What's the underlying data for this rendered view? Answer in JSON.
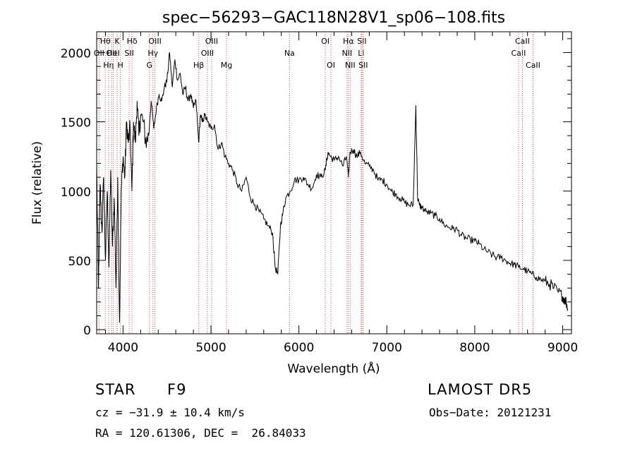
{
  "chart_data": {
    "type": "line",
    "title": "spec−56293−GAC118N28V1_sp06−108.fits",
    "xlabel": "Wavelength (Å)",
    "ylabel": "Flux (relative)",
    "xlim": [
      3700,
      9100
    ],
    "ylim": [
      -30,
      2150
    ],
    "x_ticks": [
      4000,
      5000,
      6000,
      7000,
      8000,
      9000
    ],
    "y_ticks": [
      0,
      500,
      1000,
      1500,
      2000
    ],
    "grid": false,
    "legend": "none",
    "series": [
      {
        "x": [
          3700,
          3720,
          3740,
          3760,
          3780,
          3800,
          3820,
          3840,
          3860,
          3880,
          3900,
          3920,
          3940,
          3960,
          3980,
          4000,
          4020,
          4040,
          4060,
          4080,
          4100,
          4120,
          4140,
          4160,
          4180,
          4200,
          4230,
          4260,
          4290,
          4320,
          4350,
          4380,
          4410,
          4440,
          4470,
          4500,
          4530,
          4560,
          4590,
          4620,
          4650,
          4680,
          4710,
          4740,
          4770,
          4800,
          4830,
          4860,
          4880,
          4900,
          4930,
          4960,
          5000,
          5040,
          5080,
          5120,
          5160,
          5200,
          5250,
          5300,
          5350,
          5400,
          5450,
          5500,
          5550,
          5600,
          5650,
          5700,
          5730,
          5760,
          5790,
          5820,
          5850,
          5900,
          5950,
          6000,
          6050,
          6100,
          6150,
          6200,
          6250,
          6300,
          6330,
          6360,
          6400,
          6450,
          6500,
          6540,
          6563,
          6580,
          6620,
          6660,
          6700,
          6750,
          6800,
          6850,
          6900,
          6950,
          7000,
          7050,
          7100,
          7150,
          7200,
          7250,
          7300,
          7330,
          7350,
          7370,
          7400,
          7450,
          7500,
          7550,
          7600,
          7650,
          7700,
          7750,
          7800,
          7850,
          7900,
          7950,
          8000,
          8050,
          8100,
          8150,
          8200,
          8250,
          8300,
          8350,
          8400,
          8450,
          8500,
          8550,
          8600,
          8650,
          8700,
          8750,
          8800,
          8850,
          8900,
          8950,
          9000,
          9020,
          9040,
          9060
        ],
        "y": [
          1200,
          300,
          1050,
          700,
          1100,
          500,
          1000,
          450,
          1150,
          600,
          950,
          300,
          1100,
          50,
          1000,
          1250,
          1100,
          1500,
          1350,
          1450,
          1000,
          1500,
          1350,
          1650,
          1400,
          1550,
          1500,
          1350,
          1400,
          1650,
          1450,
          1600,
          1700,
          1650,
          1750,
          1800,
          2000,
          1750,
          1950,
          1800,
          1850,
          1700,
          1750,
          1650,
          1700,
          1600,
          1650,
          1350,
          1550,
          1500,
          1550,
          1500,
          1450,
          1480,
          1300,
          1350,
          1250,
          1200,
          1150,
          1050,
          1000,
          1100,
          950,
          900,
          850,
          800,
          750,
          700,
          450,
          400,
          750,
          850,
          950,
          1000,
          1080,
          1080,
          1100,
          1050,
          1020,
          1120,
          1100,
          1150,
          1280,
          1250,
          1220,
          1250,
          1180,
          1250,
          1100,
          1280,
          1300,
          1250,
          1280,
          1200,
          1180,
          1150,
          1080,
          1080,
          1050,
          1000,
          980,
          950,
          920,
          900,
          900,
          1620,
          950,
          900,
          880,
          850,
          840,
          820,
          800,
          760,
          740,
          730,
          720,
          680,
          660,
          650,
          640,
          620,
          580,
          560,
          540,
          520,
          520,
          500,
          480,
          470,
          450,
          440,
          420,
          400,
          380,
          360,
          350,
          330,
          300,
          270,
          240,
          220,
          200,
          150
        ]
      }
    ],
    "lines": [
      {
        "wl": 3727,
        "label": "OII",
        "row": 2
      },
      {
        "wl": 3798,
        "label": "Hθ",
        "row": 1
      },
      {
        "wl": 3835,
        "label": "Hη",
        "row": 3
      },
      {
        "wl": 3869,
        "label": "OII",
        "row": 2
      },
      {
        "wl": 3889,
        "label": "HeI",
        "row": 2
      },
      {
        "wl": 3933,
        "label": "K",
        "row": 1
      },
      {
        "wl": 3970,
        "label": "H",
        "row": 3
      },
      {
        "wl": 4070,
        "label": "SII",
        "row": 2
      },
      {
        "wl": 4102,
        "label": "Hδ",
        "row": 1
      },
      {
        "wl": 4300,
        "label": "G",
        "row": 3
      },
      {
        "wl": 4340,
        "label": "Hγ",
        "row": 2
      },
      {
        "wl": 4363,
        "label": "OIII",
        "row": 1
      },
      {
        "wl": 4861,
        "label": "Hβ",
        "row": 3
      },
      {
        "wl": 4959,
        "label": "OIII",
        "row": 2
      },
      {
        "wl": 5007,
        "label": "OIII",
        "row": 1
      },
      {
        "wl": 5176,
        "label": "Mg",
        "row": 3
      },
      {
        "wl": 5893,
        "label": "Na",
        "row": 2
      },
      {
        "wl": 6300,
        "label": "OI",
        "row": 1
      },
      {
        "wl": 6364,
        "label": "OI",
        "row": 3
      },
      {
        "wl": 6548,
        "label": "NII",
        "row": 2
      },
      {
        "wl": 6563,
        "label": "Hα",
        "row": 1
      },
      {
        "wl": 6583,
        "label": "NII",
        "row": 3
      },
      {
        "wl": 6708,
        "label": "Li",
        "row": 2
      },
      {
        "wl": 6716,
        "label": "SII",
        "row": 1
      },
      {
        "wl": 6731,
        "label": "SII",
        "row": 3
      },
      {
        "wl": 8498,
        "label": "CaII",
        "row": 2
      },
      {
        "wl": 8542,
        "label": "CaII",
        "row": 1
      },
      {
        "wl": 8662,
        "label": "CaII",
        "row": 3
      }
    ]
  },
  "info": {
    "object_class": "STAR",
    "subclass": "F9",
    "survey": "LAMOST DR5",
    "velocity": "cz = −31.9 ± 10.4 km/s",
    "obs_date": "Obs−Date: 20121231",
    "coords": "RA = 120.61306, DEC =  26.84033"
  },
  "colors": {
    "line_marker": "#c0504d",
    "spectrum": "#000000",
    "axes": "#000000"
  }
}
